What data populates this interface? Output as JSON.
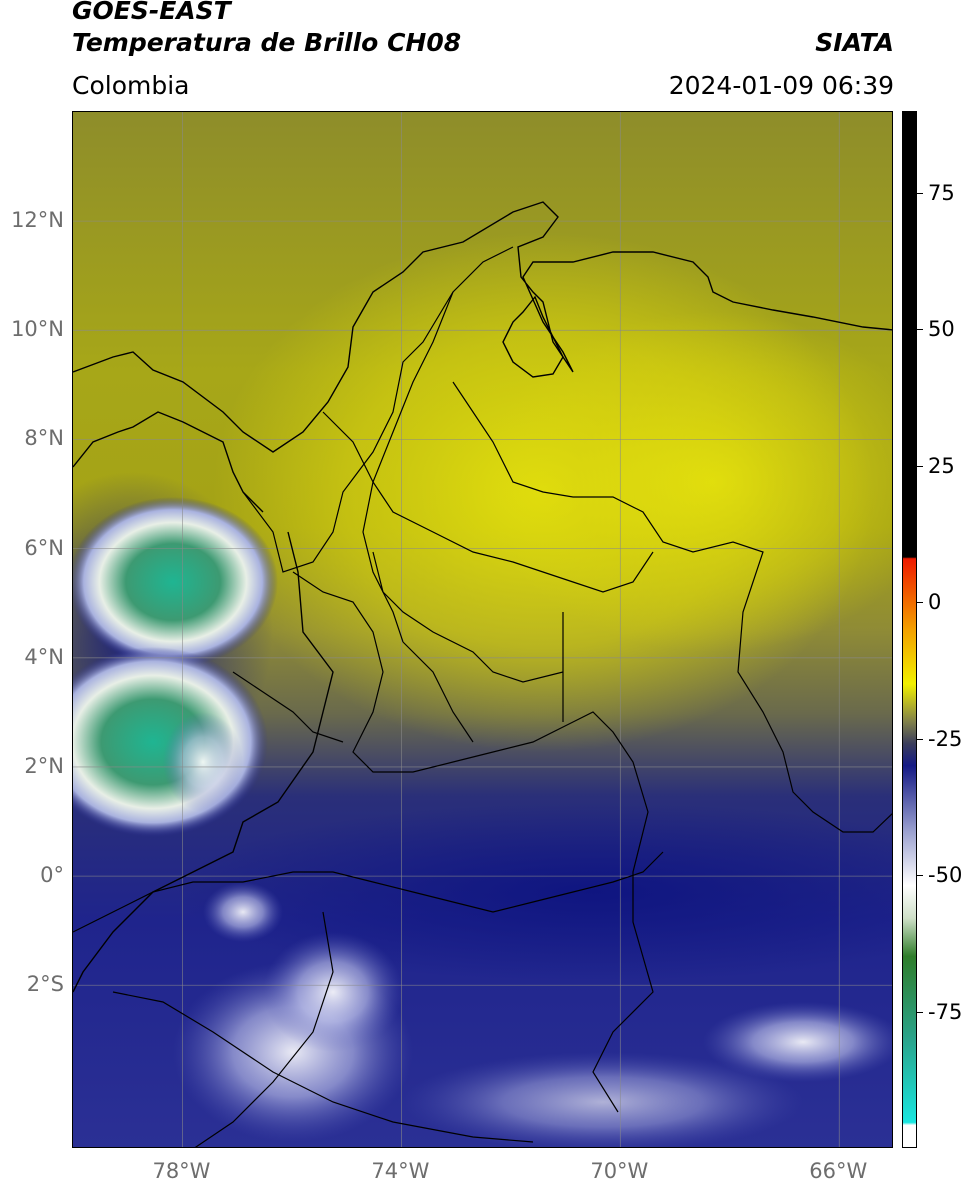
{
  "header": {
    "satellite": "GOES-EAST",
    "product": "Temperatura de Brillo CH08",
    "region": "Colombia",
    "brand": "SIATA",
    "datetime": "2024-01-09 06:39"
  },
  "map": {
    "lon_range": [
      -80,
      -65
    ],
    "lat_range": [
      -5,
      14
    ],
    "lat_ticks": [
      {
        "value": 12,
        "label": "12°N"
      },
      {
        "value": 10,
        "label": "10°N"
      },
      {
        "value": 8,
        "label": "8°N"
      },
      {
        "value": 6,
        "label": "6°N"
      },
      {
        "value": 4,
        "label": "4°N"
      },
      {
        "value": 2,
        "label": "2°N"
      },
      {
        "value": 0,
        "label": "0°"
      },
      {
        "value": -2,
        "label": "2°S"
      }
    ],
    "lon_ticks": [
      {
        "value": -78,
        "label": "78°W"
      },
      {
        "value": -74,
        "label": "74°W"
      },
      {
        "value": -70,
        "label": "70°W"
      },
      {
        "value": -66,
        "label": "66°W"
      }
    ],
    "grid": true
  },
  "colorbar": {
    "range": [
      -100,
      90
    ],
    "ticks": [
      {
        "value": 75,
        "label": "75"
      },
      {
        "value": 50,
        "label": "50"
      },
      {
        "value": 25,
        "label": "25"
      },
      {
        "value": 0,
        "label": "0"
      },
      {
        "value": -25,
        "label": "-25"
      },
      {
        "value": -50,
        "label": "-50"
      },
      {
        "value": -75,
        "label": "-75"
      }
    ],
    "stops": [
      {
        "value": -100,
        "color": "#ffffff"
      },
      {
        "value": -96,
        "color": "#ffffff"
      },
      {
        "value": -95.5,
        "color": "#19e6e0"
      },
      {
        "value": -80,
        "color": "#2aa38a"
      },
      {
        "value": -65,
        "color": "#2f7d2a"
      },
      {
        "value": -58,
        "color": "#cfe0c8"
      },
      {
        "value": -52,
        "color": "#ffffff"
      },
      {
        "value": -42,
        "color": "#9aa0cf"
      },
      {
        "value": -30,
        "color": "#151a85"
      },
      {
        "value": -26,
        "color": "#3a3d5c"
      },
      {
        "value": -22,
        "color": "#7f7f4a"
      },
      {
        "value": -15,
        "color": "#f1f000"
      },
      {
        "value": -5,
        "color": "#f3a000"
      },
      {
        "value": 8,
        "color": "#ee1a00"
      },
      {
        "value": 8.3,
        "color": "#000000"
      },
      {
        "value": 90,
        "color": "#000000"
      }
    ]
  }
}
